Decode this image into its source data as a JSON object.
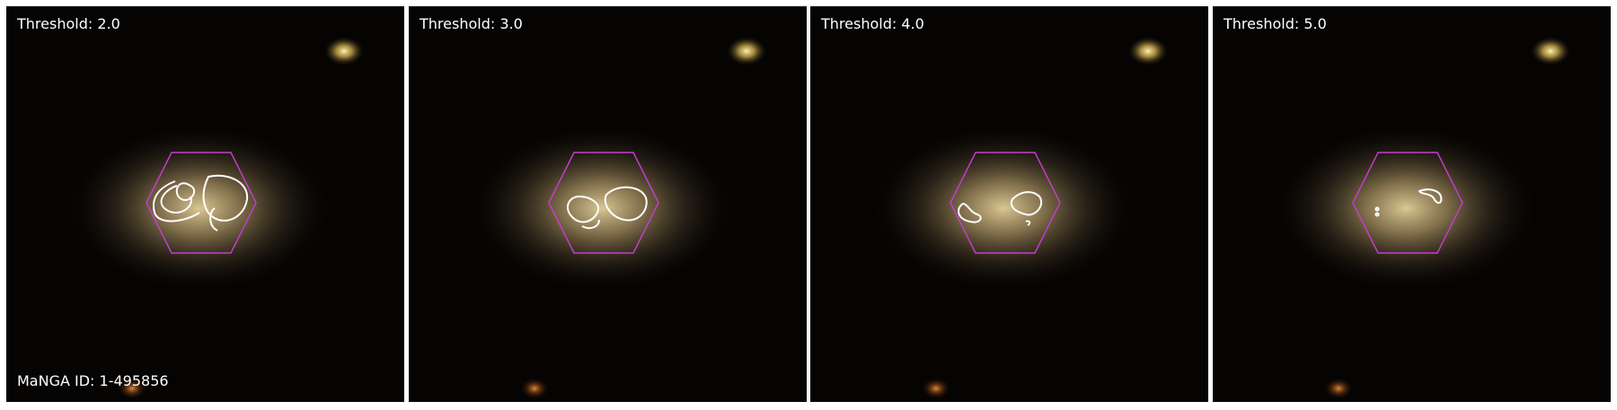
{
  "figure": {
    "manga_id_label": "MaNGA ID: 1-495856",
    "colors": {
      "hexagon": "#c83cd2",
      "contour": "#ffffff",
      "galaxy_core": "#d8c38e",
      "star": "#e8d27a",
      "background": "#050403"
    },
    "panels": [
      {
        "threshold_label": "Threshold: 2.0"
      },
      {
        "threshold_label": "Threshold: 3.0"
      },
      {
        "threshold_label": "Threshold: 4.0"
      },
      {
        "threshold_label": "Threshold: 5.0"
      }
    ]
  }
}
